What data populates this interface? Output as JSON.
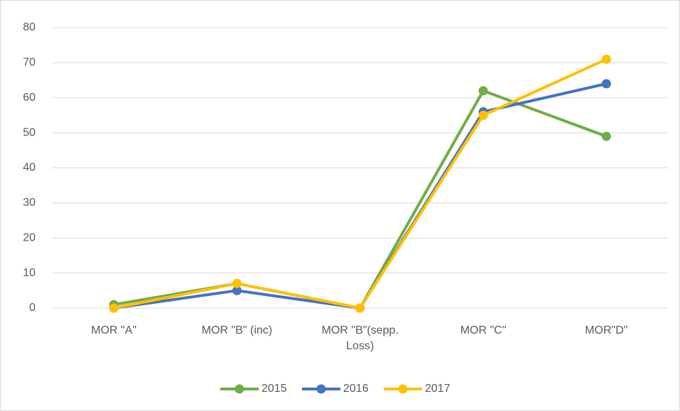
{
  "chart_data": {
    "type": "line",
    "categories": [
      "MOR \"A\"",
      "MOR \"B\" (inc)",
      "MOR \"B\"(sepp. Loss)",
      "MOR \"C\"",
      "MOR\"D\""
    ],
    "series": [
      {
        "name": "2015",
        "color": "#70ad47",
        "values": [
          1,
          7,
          0,
          62,
          49
        ]
      },
      {
        "name": "2016",
        "color": "#4472c4",
        "values": [
          0,
          5,
          0,
          56,
          64
        ]
      },
      {
        "name": "2017",
        "color": "#ffc000",
        "values": [
          0,
          7,
          0,
          55,
          71
        ]
      }
    ],
    "ylim": [
      0,
      80
    ],
    "yticks": [
      0,
      10,
      20,
      30,
      40,
      50,
      60,
      70,
      80
    ],
    "grid": true,
    "legend": "bottom"
  }
}
